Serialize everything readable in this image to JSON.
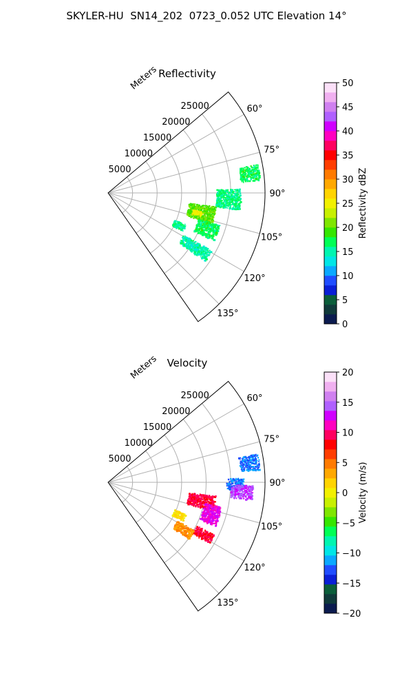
{
  "figure": {
    "title": "SKYLER-HU  SN14_202  0723_0.052 UTC Elevation 14°"
  },
  "chart_data": [
    {
      "type": "heatmap",
      "projection": "polar-sector",
      "title": "Reflectivity",
      "theta_range_deg": [
        50,
        145
      ],
      "theta_ticks": [
        60,
        75,
        90,
        105,
        120,
        135
      ],
      "theta_tick_labels": [
        "60°",
        "75°",
        "90°",
        "105°",
        "120°",
        "135°"
      ],
      "r_range_m": [
        0,
        32000
      ],
      "r_ticks": [
        5000,
        10000,
        15000,
        20000,
        25000
      ],
      "r_tick_labels": [
        "5000",
        "10000",
        "15000",
        "20000",
        "25000"
      ],
      "r_axis_label": "Meters",
      "grid": true,
      "colorbar": {
        "label": "Reflectivity dBZ",
        "min": 0,
        "max": 50,
        "ticks": [
          0,
          5,
          10,
          15,
          20,
          25,
          30,
          35,
          40,
          45,
          50
        ],
        "tick_labels": [
          "0",
          "5",
          "10",
          "15",
          "20",
          "25",
          "30",
          "35",
          "40",
          "45",
          "50"
        ],
        "colormap": [
          "#0b1b4f",
          "#103a3a",
          "#0b5e3a",
          "#0a1fd6",
          "#1f4dff",
          "#0aa8ff",
          "#00e6e6",
          "#00f5b0",
          "#00ff55",
          "#35e600",
          "#7fe600",
          "#c8f000",
          "#f2f000",
          "#ffd400",
          "#ffa800",
          "#ff7a00",
          "#ff3d00",
          "#ff0000",
          "#ff0060",
          "#ff00c0",
          "#d000ff",
          "#b060ff",
          "#d080f0",
          "#f0b0f0",
          "#fbe0f8"
        ]
      },
      "echo_regions": [
        {
          "theta_deg": [
            79,
            85
          ],
          "r_m": [
            27000,
            31000
          ],
          "value": 17
        },
        {
          "theta_deg": [
            88,
            97
          ],
          "r_m": [
            22000,
            27000
          ],
          "value": 16
        },
        {
          "theta_deg": [
            97,
            106
          ],
          "r_m": [
            16500,
            22000
          ],
          "value": 20
        },
        {
          "theta_deg": [
            101,
            104
          ],
          "r_m": [
            17500,
            19500
          ],
          "value": 25
        },
        {
          "theta_deg": [
            106,
            114
          ],
          "r_m": [
            19000,
            23500
          ],
          "value": 17
        },
        {
          "theta_deg": [
            112,
            117
          ],
          "r_m": [
            14500,
            17000
          ],
          "value": 16
        },
        {
          "theta_deg": [
            119,
            125
          ],
          "r_m": [
            17500,
            24000
          ],
          "value": 15
        }
      ]
    },
    {
      "type": "heatmap",
      "projection": "polar-sector",
      "title": "Velocity",
      "theta_range_deg": [
        50,
        145
      ],
      "theta_ticks": [
        60,
        75,
        90,
        105,
        120,
        135
      ],
      "theta_tick_labels": [
        "60°",
        "75°",
        "90°",
        "105°",
        "120°",
        "135°"
      ],
      "r_range_m": [
        0,
        32000
      ],
      "r_ticks": [
        5000,
        10000,
        15000,
        20000,
        25000
      ],
      "r_tick_labels": [
        "5000",
        "10000",
        "15000",
        "20000",
        "25000"
      ],
      "r_axis_label": "Meters",
      "grid": true,
      "colorbar": {
        "label": "Velocity (m/s)",
        "min": -20,
        "max": 20,
        "ticks": [
          -20,
          -15,
          -10,
          -5,
          0,
          5,
          10,
          15,
          20
        ],
        "tick_labels": [
          "−20",
          "−15",
          "−10",
          "−5",
          "0",
          "5",
          "10",
          "15",
          "20"
        ],
        "colormap": [
          "#0b1b4f",
          "#103a3a",
          "#0b5e3a",
          "#0a1fd6",
          "#1f4dff",
          "#0aa8ff",
          "#00e6e6",
          "#00f5b0",
          "#00ff55",
          "#35e600",
          "#7fe600",
          "#c8f000",
          "#f2f000",
          "#ffd400",
          "#ffa800",
          "#ff7a00",
          "#ff3d00",
          "#ff0000",
          "#ff0060",
          "#ff00c0",
          "#d000ff",
          "#b060ff",
          "#d080f0",
          "#f0b0f0",
          "#fbe0f8"
        ]
      },
      "echo_regions": [
        {
          "theta_deg": [
            79,
            85
          ],
          "r_m": [
            27000,
            31000
          ],
          "value": -12
        },
        {
          "theta_deg": [
            88,
            93
          ],
          "r_m": [
            24000,
            27500
          ],
          "value": -12
        },
        {
          "theta_deg": [
            91,
            97
          ],
          "r_m": [
            25000,
            29500
          ],
          "value": 14
        },
        {
          "theta_deg": [
            97,
            105
          ],
          "r_m": [
            16500,
            22000
          ],
          "value": 9
        },
        {
          "theta_deg": [
            102,
            112
          ],
          "r_m": [
            20000,
            23500
          ],
          "value": 12
        },
        {
          "theta_deg": [
            112,
            117
          ],
          "r_m": [
            14500,
            17000
          ],
          "value": 1
        },
        {
          "theta_deg": [
            116,
            121
          ],
          "r_m": [
            20000,
            24000
          ],
          "value": 9
        },
        {
          "theta_deg": [
            119,
            125
          ],
          "r_m": [
            16000,
            20000
          ],
          "value": 4
        }
      ]
    }
  ]
}
